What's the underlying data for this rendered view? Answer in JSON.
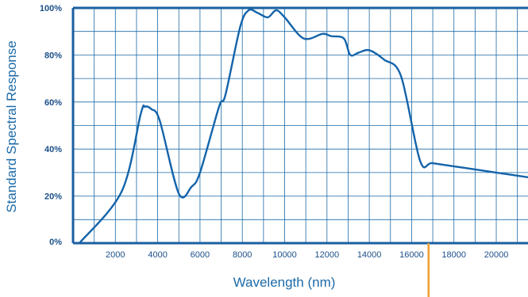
{
  "colors": {
    "grid": "#1b6aa8",
    "series": "#1464aa",
    "frame": "#1b5fa0",
    "marker": "#f0a030",
    "text": "#1b6aa8"
  },
  "chart_data": {
    "type": "line",
    "title": "",
    "xlabel": "Wavelength (nm)",
    "ylabel": "Standard Spectral Response",
    "xlim": [
      0,
      21500
    ],
    "ylim": [
      0,
      100
    ],
    "x_ticks": [
      2000,
      4000,
      6000,
      8000,
      10000,
      12000,
      14000,
      16000,
      18000,
      20000
    ],
    "x_tick_labels": [
      "2000",
      "4000",
      "6000",
      "8000",
      "10000",
      "12000",
      "14000",
      "16000",
      "18000",
      "20000"
    ],
    "y_ticks": [
      0,
      20,
      40,
      60,
      80,
      100
    ],
    "y_tick_labels": [
      "0%",
      "20%",
      "40%",
      "60%",
      "80%",
      "100%"
    ],
    "grid": true,
    "vertical_marker_x": 16800,
    "series": [
      {
        "x": [
          300,
          2300,
          3200,
          3400,
          3700,
          4100,
          5000,
          5600,
          6000,
          6900,
          7200,
          7900,
          8300,
          8700,
          9200,
          9600,
          10000,
          10900,
          11800,
          12200,
          12800,
          13100,
          13500,
          14000,
          14700,
          15500,
          16400,
          17000,
          18500,
          20000,
          21500
        ],
        "y": [
          0,
          22,
          55,
          58,
          57,
          52,
          21,
          24,
          30,
          58,
          63,
          92,
          99,
          98,
          96,
          99,
          96,
          87,
          89,
          88,
          87,
          80,
          81,
          82,
          78,
          71,
          35,
          34,
          32,
          30,
          28
        ]
      }
    ]
  }
}
